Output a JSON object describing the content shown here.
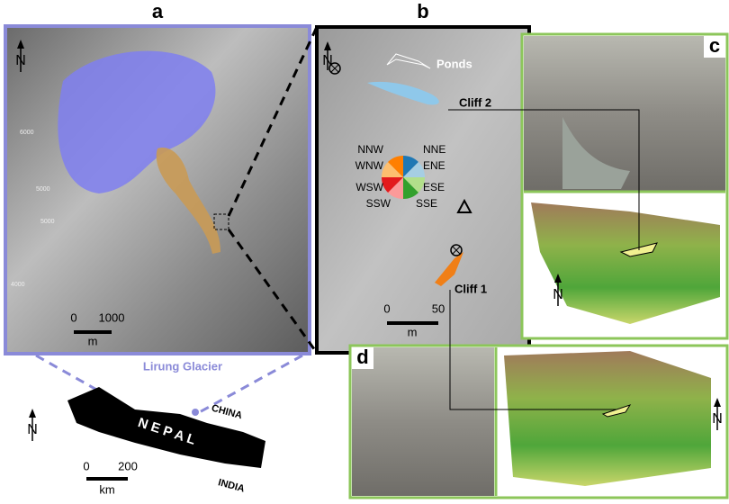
{
  "north": "N",
  "panel_a": {
    "label": "a",
    "caption": "Lirung Glacier",
    "contours": [
      "6000",
      "5000",
      "5000",
      "4000"
    ],
    "scale": {
      "start": 0,
      "end": 1000,
      "unit": "m"
    }
  },
  "panel_b": {
    "label": "b",
    "ponds": "Ponds",
    "cliff_2": "Cliff 2",
    "cliff_1": "Cliff 1",
    "aspects": [
      "NNW",
      "NNE",
      "WNW",
      "ENE",
      "WSW",
      "ESE",
      "SSW",
      "SSE"
    ],
    "scale": {
      "start": 0,
      "end": 50,
      "unit": "m"
    }
  },
  "panel_c": {
    "label": "c"
  },
  "panel_d": {
    "label": "d"
  },
  "nepal": {
    "name": "N E P A L",
    "north_neighbor": "CHINA",
    "south_neighbor": "INDIA",
    "scale": {
      "start": 0,
      "end": 200,
      "unit": "km"
    }
  }
}
